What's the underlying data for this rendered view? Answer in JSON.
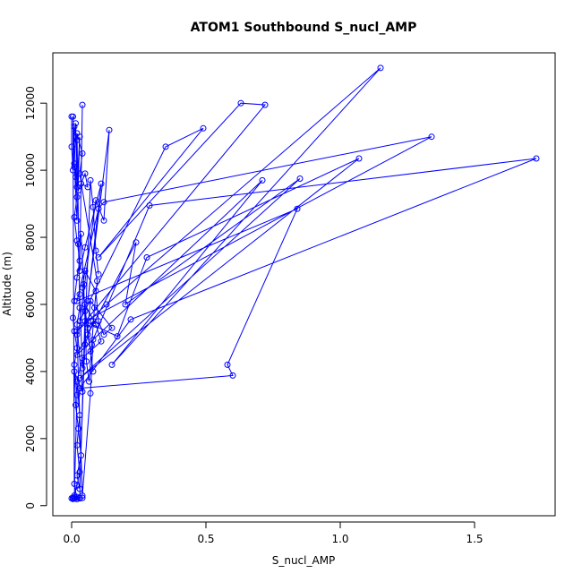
{
  "chart_data": {
    "type": "line",
    "title": "ATOM1 Southbound S_nucl_AMP",
    "xlabel": "S_nucl_AMP",
    "ylabel": "Altitude (m)",
    "xlim": [
      -0.07,
      1.8
    ],
    "ylim": [
      -300,
      13500
    ],
    "x_ticks": [
      0.0,
      0.5,
      1.0,
      1.5
    ],
    "x_tick_labels": [
      "0.0",
      "0.5",
      "1.0",
      "1.5"
    ],
    "y_ticks": [
      0,
      2000,
      4000,
      6000,
      8000,
      10000,
      12000
    ],
    "y_tick_labels": [
      "0",
      "2000",
      "4000",
      "6000",
      "8000",
      "10000",
      "12000"
    ],
    "grid": false,
    "legend": "none",
    "series": [
      {
        "color": "#0000ff",
        "marker": "open-circle",
        "points": [
          [
            0.02,
            200
          ],
          [
            0.01,
            650
          ],
          [
            0.005,
            11600
          ],
          [
            0.01,
            10100
          ],
          [
            0.015,
            11400
          ],
          [
            0.02,
            9500
          ],
          [
            0.03,
            11000
          ],
          [
            0.02,
            8500
          ],
          [
            0.01,
            10200
          ],
          [
            0.025,
            9400
          ],
          [
            0.05,
            9900
          ],
          [
            0.06,
            9500
          ],
          [
            0.035,
            9600
          ],
          [
            0.04,
            11950
          ],
          [
            0.03,
            7000
          ],
          [
            0.05,
            7700
          ],
          [
            0.11,
            9600
          ],
          [
            0.06,
            6100
          ],
          [
            0.14,
            11200
          ],
          [
            0.12,
            8500
          ],
          [
            0.09,
            9100
          ],
          [
            0.03,
            5500
          ],
          [
            0.35,
            10700
          ],
          [
            0.49,
            11250
          ],
          [
            0.1,
            7400
          ],
          [
            0.63,
            12000
          ],
          [
            0.72,
            11950
          ],
          [
            0.02,
            5200
          ],
          [
            0.13,
            6000
          ],
          [
            1.15,
            13050
          ],
          [
            0.15,
            4200
          ],
          [
            0.71,
            9700
          ],
          [
            0.02,
            4500
          ],
          [
            0.24,
            7850
          ],
          [
            0.2,
            6000
          ],
          [
            0.85,
            9750
          ],
          [
            0.03,
            3800
          ],
          [
            1.07,
            10350
          ],
          [
            0.28,
            7400
          ],
          [
            0.17,
            5050
          ],
          [
            0.05,
            5500
          ],
          [
            1.34,
            11000
          ],
          [
            0.12,
            9050
          ],
          [
            0.1,
            8850
          ],
          [
            0.02,
            6100
          ],
          [
            0.84,
            8850
          ],
          [
            0.58,
            4200
          ],
          [
            0.6,
            3880
          ],
          [
            0.03,
            3500
          ],
          [
            0.22,
            5550
          ],
          [
            1.73,
            10350
          ],
          [
            0.29,
            8950
          ],
          [
            0.08,
            4950
          ],
          [
            0.07,
            3350
          ],
          [
            0.04,
            300
          ],
          [
            0.02,
            5100
          ],
          [
            0.05,
            6000
          ],
          [
            0.09,
            5400
          ],
          [
            0.11,
            4900
          ],
          [
            0.04,
            4400
          ],
          [
            0.02,
            3700
          ],
          [
            0.03,
            2700
          ],
          [
            0.02,
            1800
          ],
          [
            0.03,
            1000
          ],
          [
            0.02,
            600
          ],
          [
            0.01,
            300
          ],
          [
            0.005,
            200
          ],
          [
            0.0,
            220
          ],
          [
            0.005,
            230
          ],
          [
            0.01,
            210
          ],
          [
            0.03,
            240
          ],
          [
            0.04,
            230
          ],
          [
            0.02,
            260
          ]
        ],
        "extra_points": [
          [
            0.0,
            11600
          ],
          [
            0.0,
            10700
          ],
          [
            0.005,
            10000
          ],
          [
            0.01,
            11300
          ],
          [
            0.02,
            10900
          ],
          [
            0.015,
            9800
          ],
          [
            0.02,
            9200
          ],
          [
            0.01,
            8600
          ],
          [
            0.02,
            7900
          ],
          [
            0.03,
            7300
          ],
          [
            0.02,
            6800
          ],
          [
            0.01,
            6100
          ],
          [
            0.005,
            5600
          ],
          [
            0.01,
            5200
          ],
          [
            0.02,
            4700
          ],
          [
            0.01,
            4200
          ],
          [
            0.02,
            3300
          ],
          [
            0.01,
            250
          ],
          [
            0.02,
            200
          ],
          [
            0.03,
            220
          ],
          [
            0.05,
            5800
          ],
          [
            0.06,
            5100
          ],
          [
            0.07,
            4600
          ],
          [
            0.08,
            4000
          ],
          [
            0.04,
            6500
          ],
          [
            0.05,
            7000
          ],
          [
            0.09,
            6400
          ],
          [
            0.1,
            5500
          ],
          [
            0.12,
            5100
          ],
          [
            0.15,
            5300
          ],
          [
            0.07,
            6100
          ],
          [
            0.06,
            5300
          ],
          [
            0.08,
            5500
          ],
          [
            0.05,
            4800
          ],
          [
            0.04,
            4100
          ],
          [
            0.03,
            6300
          ],
          [
            0.025,
            7800
          ],
          [
            0.035,
            8100
          ],
          [
            0.045,
            6600
          ],
          [
            0.055,
            4300
          ],
          [
            0.065,
            3700
          ],
          [
            0.075,
            4800
          ],
          [
            0.085,
            5900
          ],
          [
            0.095,
            6700
          ],
          [
            0.03,
            9900
          ],
          [
            0.04,
            10500
          ],
          [
            0.02,
            11100
          ],
          [
            0.03,
            5900
          ],
          [
            0.02,
            5400
          ],
          [
            0.04,
            3400
          ],
          [
            0.01,
            4000
          ],
          [
            0.015,
            3000
          ],
          [
            0.025,
            2300
          ],
          [
            0.035,
            1500
          ],
          [
            0.02,
            900
          ],
          [
            0.03,
            500
          ],
          [
            0.07,
            9700
          ],
          [
            0.08,
            8900
          ],
          [
            0.09,
            7600
          ],
          [
            0.1,
            6900
          ]
        ]
      }
    ]
  }
}
